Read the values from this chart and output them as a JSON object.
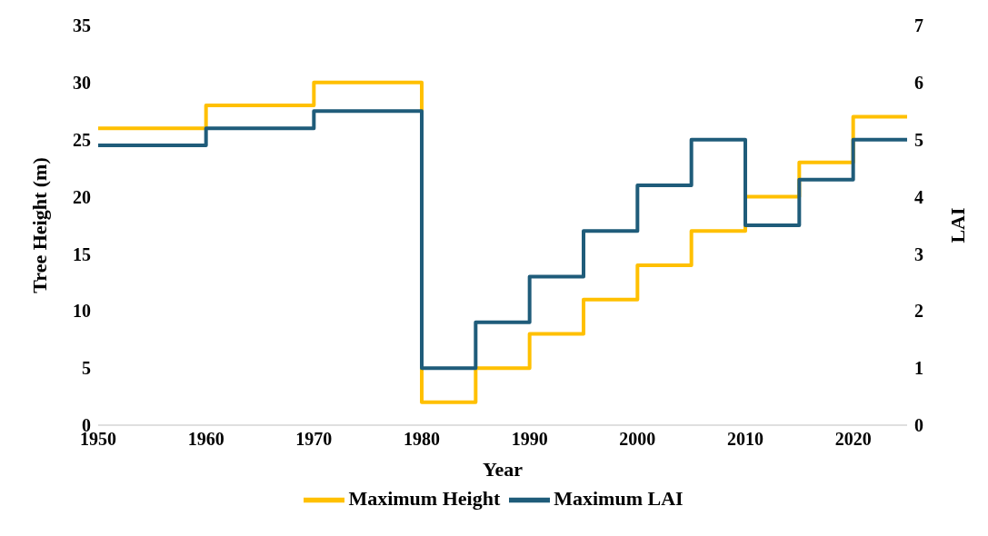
{
  "chart_data": {
    "type": "step",
    "xlabel": "Year",
    "ylabel": "Tree Height (m)",
    "y2label": "LAI",
    "x": [
      1950,
      1960,
      1970,
      1980,
      1985,
      1990,
      1995,
      2000,
      2005,
      2010,
      2015,
      2020,
      2025
    ],
    "series": [
      {
        "name": "Maximum Height",
        "color": "#ffc000",
        "values": [
          26,
          28,
          30,
          2,
          5,
          8,
          11,
          14,
          17,
          20,
          23,
          27,
          27
        ]
      },
      {
        "name": "Maximum LAI",
        "color": "#1f5c7a",
        "axis": "y2",
        "values": [
          4.9,
          5.2,
          5.5,
          1.0,
          1.8,
          2.6,
          3.4,
          4.2,
          5.0,
          3.5,
          4.3,
          5.0,
          5.0
        ]
      }
    ],
    "xlim": [
      1950,
      2025
    ],
    "xticks": [
      1950,
      1960,
      1970,
      1980,
      1990,
      2000,
      2010,
      2020
    ],
    "ylim": [
      0,
      35
    ],
    "yticks": [
      0,
      5,
      10,
      15,
      20,
      25,
      30,
      35
    ],
    "y2lim": [
      0,
      7
    ],
    "y2ticks": [
      0,
      1,
      2,
      3,
      4,
      5,
      6,
      7
    ],
    "grid": false,
    "legend": "bottom",
    "marker": "none",
    "line_style": "solid"
  }
}
